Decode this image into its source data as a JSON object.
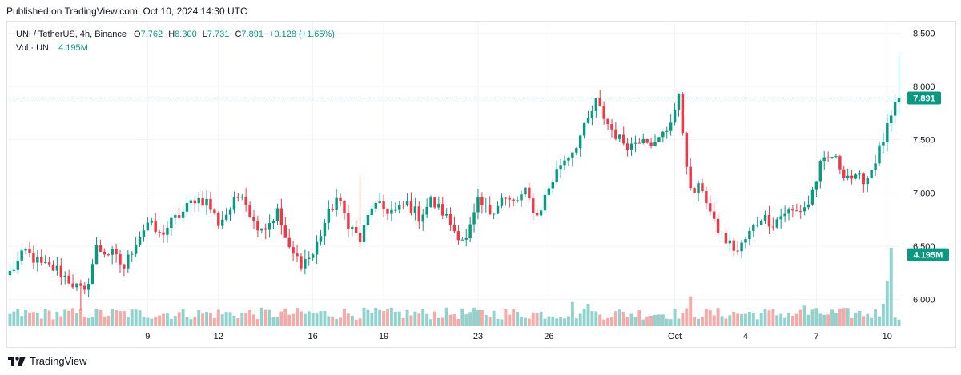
{
  "header": {
    "published": "Published on TradingView.com, Oct 10, 2024 14:30 UTC"
  },
  "legend": {
    "symbol": "UNI / TetherUS, 4h, Binance",
    "open_label": "O",
    "open": "7.762",
    "high_label": "H",
    "high": "8.300",
    "low_label": "L",
    "low": "7.731",
    "close_label": "C",
    "close": "7.891",
    "change": "+0.128 (+1.65%)",
    "vol_label": "Vol · UNI",
    "vol_value": "4.195M"
  },
  "footer": {
    "brand": "TradingView"
  },
  "colors": {
    "up": "#089981",
    "down": "#f23645",
    "vol_up": "#92d2cc",
    "vol_down": "#f7a9a7"
  },
  "chart_data": {
    "type": "candlestick",
    "title": "UNI / TetherUS, 4h, Binance",
    "ylim": [
      5.75,
      8.6
    ],
    "y_ticks": [
      "8.500",
      "8.000",
      "7.500",
      "7.000",
      "6.500",
      "6.000"
    ],
    "y_tick_values": [
      8.5,
      8.0,
      7.5,
      7.0,
      6.5,
      6.0
    ],
    "x_ticks": [
      {
        "label": "9",
        "index": 35
      },
      {
        "label": "12",
        "index": 53
      },
      {
        "label": "16",
        "index": 77
      },
      {
        "label": "19",
        "index": 95
      },
      {
        "label": "23",
        "index": 119
      },
      {
        "label": "26",
        "index": 137
      },
      {
        "label": "Oct",
        "index": 169
      },
      {
        "label": "4",
        "index": 187
      },
      {
        "label": "7",
        "index": 205
      },
      {
        "label": "10",
        "index": 223
      }
    ],
    "last_price": "7.891",
    "last_price_value": 7.891,
    "volume_label": "4.195M",
    "volume_max": 4.195,
    "anchors": [
      [
        0,
        6.25
      ],
      [
        4,
        6.45
      ],
      [
        8,
        6.32
      ],
      [
        12,
        6.28
      ],
      [
        16,
        6.15
      ],
      [
        19,
        6.05
      ],
      [
        22,
        6.48
      ],
      [
        26,
        6.42
      ],
      [
        29,
        6.3
      ],
      [
        32,
        6.55
      ],
      [
        35,
        6.72
      ],
      [
        38,
        6.6
      ],
      [
        41,
        6.72
      ],
      [
        44,
        6.82
      ],
      [
        47,
        6.95
      ],
      [
        50,
        6.92
      ],
      [
        53,
        6.72
      ],
      [
        56,
        6.85
      ],
      [
        59,
        7.02
      ],
      [
        62,
        6.72
      ],
      [
        65,
        6.68
      ],
      [
        68,
        6.82
      ],
      [
        71,
        6.45
      ],
      [
        74,
        6.35
      ],
      [
        77,
        6.42
      ],
      [
        80,
        6.72
      ],
      [
        83,
        6.95
      ],
      [
        86,
        6.72
      ],
      [
        89,
        6.55
      ],
      [
        92,
        6.88
      ],
      [
        95,
        6.85
      ],
      [
        98,
        6.82
      ],
      [
        101,
        6.9
      ],
      [
        104,
        6.78
      ],
      [
        107,
        6.92
      ],
      [
        110,
        6.82
      ],
      [
        113,
        6.65
      ],
      [
        116,
        6.55
      ],
      [
        119,
        6.9
      ],
      [
        122,
        6.82
      ],
      [
        125,
        6.95
      ],
      [
        128,
        6.9
      ],
      [
        131,
        7.0
      ],
      [
        134,
        6.78
      ],
      [
        137,
        7.05
      ],
      [
        140,
        7.28
      ],
      [
        143,
        7.4
      ],
      [
        146,
        7.6
      ],
      [
        149,
        7.85
      ],
      [
        152,
        7.65
      ],
      [
        155,
        7.5
      ],
      [
        158,
        7.45
      ],
      [
        161,
        7.55
      ],
      [
        164,
        7.45
      ],
      [
        167,
        7.6
      ],
      [
        170,
        7.88
      ],
      [
        173,
        7.0
      ],
      [
        176,
        7.05
      ],
      [
        179,
        6.7
      ],
      [
        182,
        6.55
      ],
      [
        185,
        6.45
      ],
      [
        188,
        6.62
      ],
      [
        191,
        6.78
      ],
      [
        194,
        6.72
      ],
      [
        197,
        6.82
      ],
      [
        200,
        6.82
      ],
      [
        203,
        6.9
      ],
      [
        206,
        7.25
      ],
      [
        209,
        7.35
      ],
      [
        212,
        7.2
      ],
      [
        215,
        7.12
      ],
      [
        218,
        7.15
      ],
      [
        221,
        7.4
      ],
      [
        224,
        7.7
      ],
      [
        226,
        7.891
      ]
    ],
    "volume_spikes": [
      [
        222,
        1.2
      ],
      [
        223,
        2.4
      ],
      [
        224,
        4.195
      ],
      [
        173,
        1.6
      ],
      [
        143,
        1.3
      ],
      [
        147,
        1.2
      ],
      [
        202,
        1.1
      ]
    ]
  }
}
